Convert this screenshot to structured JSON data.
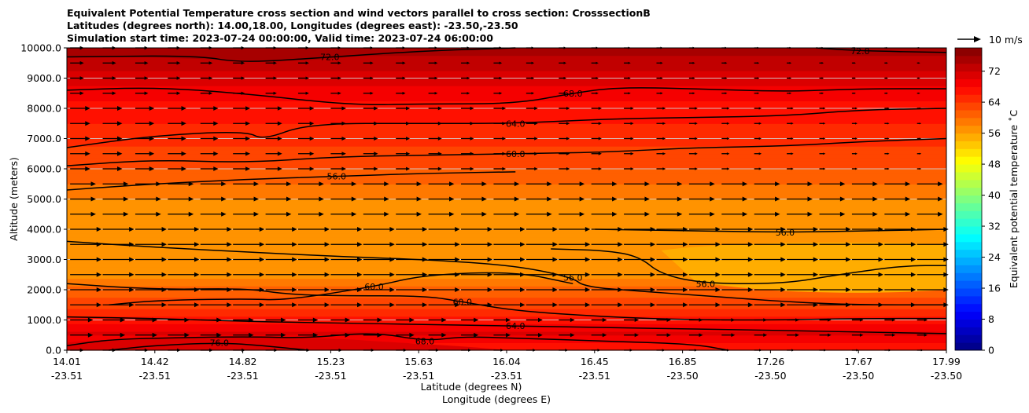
{
  "chart_data": {
    "type": "contourf",
    "title_lines": [
      "Equivalent Potential Temperature cross section and wind vectors parallel to cross section: CrosssectionB",
      "Latitudes (degrees north): 14.00,18.00, Longitudes (degrees east): -23.50,-23.50",
      "Simulation start time: 2023-07-24 00:00:00, Valid time: 2023-07-24 06:00:00"
    ],
    "xlabel_line1": "Latitude (degrees N)",
    "xlabel_line2": "Longitude (degrees E)",
    "ylabel": "Altitude (meters)",
    "ylim": [
      0,
      10000
    ],
    "yticks": [
      "0.0",
      "1000.0",
      "2000.0",
      "3000.0",
      "4000.0",
      "5000.0",
      "6000.0",
      "7000.0",
      "8000.0",
      "9000.0",
      "10000.0"
    ],
    "xlim": [
      14.01,
      17.99
    ],
    "xticks": [
      {
        "lat": "14.01",
        "lon": "-23.51"
      },
      {
        "lat": "14.42",
        "lon": "-23.51"
      },
      {
        "lat": "14.82",
        "lon": "-23.51"
      },
      {
        "lat": "15.23",
        "lon": "-23.51"
      },
      {
        "lat": "15.63",
        "lon": "-23.51"
      },
      {
        "lat": "16.04",
        "lon": "-23.51"
      },
      {
        "lat": "16.45",
        "lon": "-23.51"
      },
      {
        "lat": "16.85",
        "lon": "-23.50"
      },
      {
        "lat": "17.26",
        "lon": "-23.50"
      },
      {
        "lat": "17.67",
        "lon": "-23.50"
      },
      {
        "lat": "17.99",
        "lon": "-23.50"
      }
    ],
    "colorbar": {
      "label": "Equivalent potential temperature ˚C",
      "range": [
        0,
        78
      ],
      "ticks": [
        "0",
        "8",
        "16",
        "24",
        "32",
        "40",
        "48",
        "56",
        "64",
        "72"
      ]
    },
    "quiver_key": {
      "label": "10 m/s"
    },
    "theta_e_profile": [
      {
        "alt": 0,
        "value": 66
      },
      {
        "alt": 500,
        "value": 70
      },
      {
        "alt": 1000,
        "value": 66
      },
      {
        "alt": 1500,
        "value": 63
      },
      {
        "alt": 2000,
        "value": 60
      },
      {
        "alt": 2500,
        "value": 57
      },
      {
        "alt": 3000,
        "value": 56
      },
      {
        "alt": 3500,
        "value": 57
      },
      {
        "alt": 4000,
        "value": 57
      },
      {
        "alt": 4500,
        "value": 57
      },
      {
        "alt": 5000,
        "value": 58
      },
      {
        "alt": 5500,
        "value": 60
      },
      {
        "alt": 6000,
        "value": 62
      },
      {
        "alt": 6500,
        "value": 63
      },
      {
        "alt": 7000,
        "value": 65
      },
      {
        "alt": 7500,
        "value": 66
      },
      {
        "alt": 8000,
        "value": 67
      },
      {
        "alt": 8500,
        "value": 69
      },
      {
        "alt": 9000,
        "value": 71
      },
      {
        "alt": 9500,
        "value": 73
      },
      {
        "alt": 10000,
        "value": 75
      }
    ],
    "contours": [
      {
        "level": "72.0",
        "points": [
          [
            14.01,
            9700
          ],
          [
            14.6,
            9750
          ],
          [
            14.8,
            9500
          ],
          [
            15.2,
            9700
          ],
          [
            15.63,
            9900
          ],
          [
            16.04,
            10000
          ]
        ]
      },
      {
        "level": "72.0",
        "points": [
          [
            17.4,
            10000
          ],
          [
            17.6,
            9900
          ],
          [
            17.99,
            9850
          ]
        ]
      },
      {
        "level": "68.0",
        "points": [
          [
            14.01,
            8600
          ],
          [
            14.4,
            8700
          ],
          [
            14.8,
            8500
          ],
          [
            15.3,
            8100
          ],
          [
            15.63,
            8150
          ],
          [
            16.04,
            8150
          ],
          [
            16.3,
            8500
          ],
          [
            16.5,
            8700
          ],
          [
            16.85,
            8650
          ],
          [
            17.26,
            8550
          ],
          [
            17.6,
            8650
          ],
          [
            17.99,
            8650
          ]
        ]
      },
      {
        "level": "64.0",
        "points": [
          [
            14.01,
            6700
          ],
          [
            14.4,
            7100
          ],
          [
            14.82,
            7250
          ],
          [
            14.9,
            6950
          ],
          [
            15.1,
            7500
          ],
          [
            15.63,
            7500
          ],
          [
            16.04,
            7500
          ],
          [
            16.45,
            7650
          ],
          [
            16.85,
            7700
          ],
          [
            17.26,
            7750
          ],
          [
            17.6,
            7950
          ],
          [
            17.99,
            8000
          ]
        ]
      },
      {
        "level": "60.0",
        "points": [
          [
            14.01,
            6100
          ],
          [
            14.4,
            6300
          ],
          [
            14.82,
            6200
          ],
          [
            15.23,
            6400
          ],
          [
            15.63,
            6450
          ],
          [
            16.04,
            6500
          ],
          [
            16.45,
            6550
          ],
          [
            16.85,
            6700
          ],
          [
            17.26,
            6750
          ],
          [
            17.6,
            6900
          ],
          [
            17.99,
            7000
          ]
        ]
      },
      {
        "level": "56.0",
        "points": [
          [
            14.01,
            5300
          ],
          [
            14.4,
            5500
          ],
          [
            14.82,
            5650
          ],
          [
            15.23,
            5750
          ],
          [
            15.63,
            5850
          ],
          [
            16.04,
            5900
          ]
        ]
      },
      {
        "level": "56.0",
        "points": [
          [
            14.01,
            3600
          ],
          [
            14.42,
            3400
          ],
          [
            14.82,
            3250
          ],
          [
            15.23,
            3100
          ],
          [
            15.63,
            3000
          ],
          [
            16.04,
            2800
          ],
          [
            16.3,
            2400
          ],
          [
            16.35,
            2100
          ],
          [
            16.6,
            1950
          ],
          [
            16.9,
            1800
          ],
          [
            17.26,
            1600
          ],
          [
            17.6,
            1500
          ],
          [
            17.99,
            1500
          ]
        ]
      },
      {
        "level": "56.0",
        "points": [
          [
            16.2,
            3350
          ],
          [
            16.45,
            3300
          ],
          [
            16.6,
            3100
          ],
          [
            16.7,
            2500
          ],
          [
            16.9,
            2200
          ],
          [
            17.26,
            2200
          ],
          [
            17.5,
            2500
          ],
          [
            17.8,
            2800
          ],
          [
            17.99,
            2800
          ]
        ]
      },
      {
        "level": "56.0",
        "points": [
          [
            16.4,
            4000
          ],
          [
            16.85,
            3950
          ],
          [
            17.26,
            3900
          ],
          [
            17.67,
            3950
          ],
          [
            17.99,
            4000
          ]
        ]
      },
      {
        "level": "60.0",
        "points": [
          [
            14.01,
            2200
          ],
          [
            14.42,
            2000
          ],
          [
            14.82,
            2050
          ],
          [
            15.0,
            1850
          ],
          [
            15.23,
            1800
          ],
          [
            15.63,
            1800
          ],
          [
            15.8,
            1600
          ],
          [
            16.04,
            1300
          ],
          [
            16.45,
            1100
          ],
          [
            16.85,
            1000
          ],
          [
            17.26,
            1000
          ],
          [
            17.6,
            1050
          ],
          [
            17.99,
            1050
          ]
        ]
      },
      {
        "level": "60.0",
        "points": [
          [
            14.2,
            1500
          ],
          [
            14.42,
            1650
          ],
          [
            14.82,
            1700
          ],
          [
            15.0,
            1650
          ],
          [
            15.4,
            2100
          ],
          [
            15.63,
            2500
          ],
          [
            16.04,
            2600
          ],
          [
            16.3,
            2200
          ]
        ]
      },
      {
        "level": "64.0",
        "points": [
          [
            14.01,
            1100
          ],
          [
            14.42,
            1050
          ],
          [
            14.82,
            950
          ],
          [
            15.23,
            900
          ],
          [
            15.63,
            850
          ],
          [
            16.04,
            800
          ],
          [
            16.45,
            750
          ],
          [
            16.85,
            700
          ],
          [
            17.26,
            650
          ],
          [
            17.6,
            600
          ],
          [
            17.99,
            550
          ]
        ]
      },
      {
        "level": "68.0",
        "points": [
          [
            14.01,
            150
          ],
          [
            14.2,
            350
          ],
          [
            14.42,
            400
          ],
          [
            14.82,
            450
          ],
          [
            15.1,
            400
          ],
          [
            15.4,
            600
          ],
          [
            15.63,
            300
          ],
          [
            15.8,
            450
          ],
          [
            16.04,
            400
          ],
          [
            16.45,
            300
          ],
          [
            16.85,
            200
          ],
          [
            17.0,
            0
          ]
        ]
      },
      {
        "level": "76.0",
        "points": [
          [
            14.2,
            0
          ],
          [
            14.4,
            150
          ],
          [
            14.7,
            250
          ],
          [
            14.9,
            150
          ],
          [
            15.1,
            0
          ]
        ]
      }
    ]
  }
}
